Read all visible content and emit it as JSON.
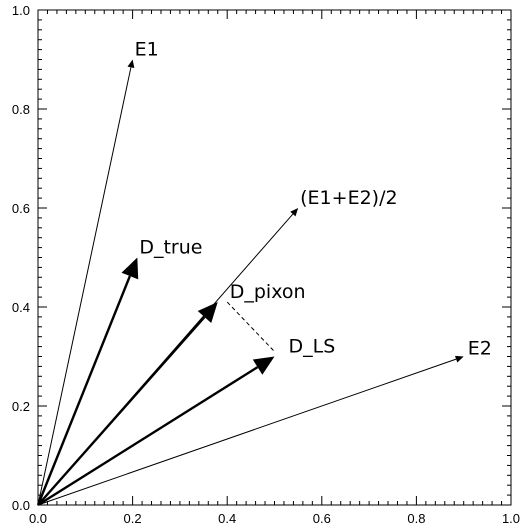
{
  "chart_data": {
    "type": "vector-diagram",
    "title": "",
    "xlabel": "",
    "ylabel": "",
    "xlim": [
      0.0,
      1.0
    ],
    "ylim": [
      0.0,
      1.0
    ],
    "xticks": [
      "0.0",
      "0.2",
      "0.4",
      "0.6",
      "0.8",
      "1.0"
    ],
    "yticks": [
      "0.0",
      "0.2",
      "0.4",
      "0.6",
      "0.8",
      "1.0"
    ],
    "grid": false,
    "vectors": [
      {
        "label": "E1",
        "from": [
          0,
          0
        ],
        "to": [
          0.2,
          0.9
        ],
        "style": "thin"
      },
      {
        "label": "E2",
        "from": [
          0,
          0
        ],
        "to": [
          0.9,
          0.3
        ],
        "style": "thin"
      },
      {
        "label": "(E1+E2)/2",
        "from": [
          0,
          0
        ],
        "to": [
          0.55,
          0.6
        ],
        "style": "thin"
      },
      {
        "label": "D_true",
        "from": [
          0,
          0
        ],
        "to": [
          0.21,
          0.5
        ],
        "style": "bold"
      },
      {
        "label": "D_pixon",
        "from": [
          0,
          0
        ],
        "to": [
          0.38,
          0.41
        ],
        "style": "bold"
      },
      {
        "label": "D_LS",
        "from": [
          0,
          0
        ],
        "to": [
          0.5,
          0.3
        ],
        "style": "bold"
      }
    ],
    "connector": {
      "from": [
        0.4,
        0.41
      ],
      "to": [
        0.5,
        0.31
      ],
      "style": "dashed"
    }
  }
}
